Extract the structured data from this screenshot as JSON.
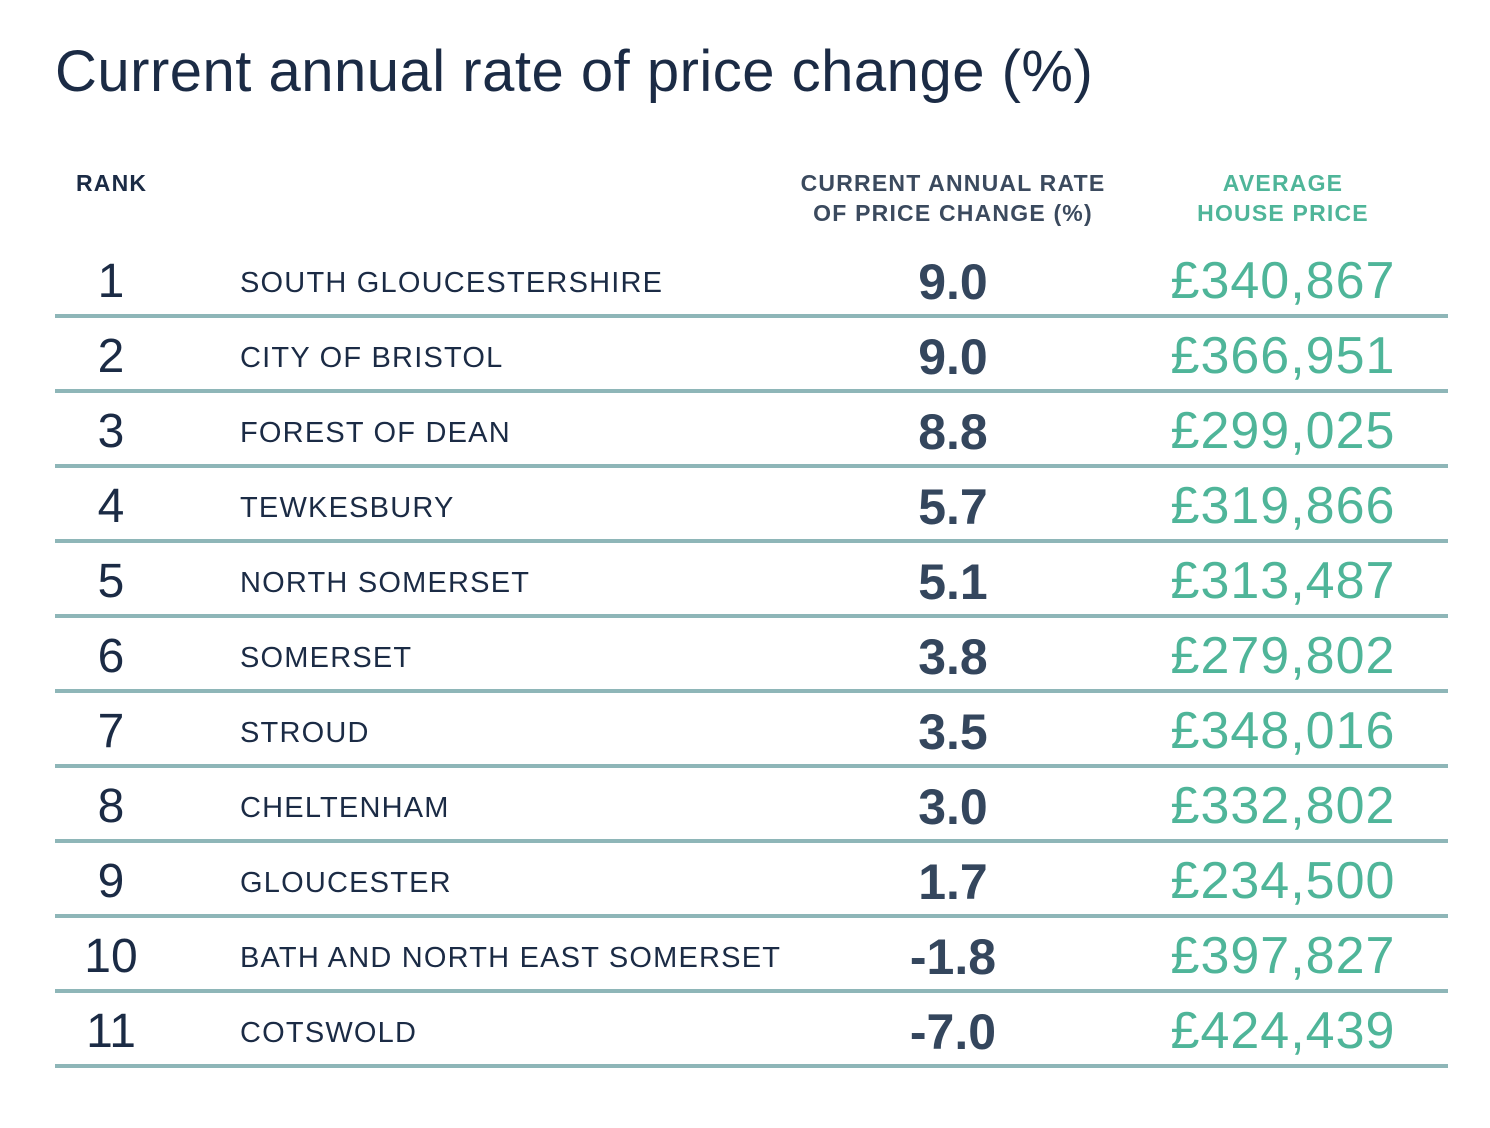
{
  "title": "Current annual rate of price change (%)",
  "headers": {
    "rank": "RANK",
    "rate_line1": "CURRENT ANNUAL RATE",
    "rate_line2": "OF PRICE CHANGE (%)",
    "price_line1": "AVERAGE",
    "price_line2": "HOUSE PRICE"
  },
  "colors": {
    "dark": "#1b2b45",
    "rate": "#34465d",
    "accent": "#4fb599",
    "rule": "#8eb6b8"
  },
  "chart_data": {
    "type": "table",
    "title": "Current annual rate of price change (%)",
    "columns": [
      "RANK",
      "",
      "CURRENT ANNUAL RATE OF PRICE CHANGE (%)",
      "AVERAGE HOUSE PRICE"
    ],
    "rows": [
      {
        "rank": "1",
        "name": "SOUTH GLOUCESTERSHIRE",
        "rate": "9.0",
        "price": "£340,867"
      },
      {
        "rank": "2",
        "name": "CITY OF BRISTOL",
        "rate": "9.0",
        "price": "£366,951"
      },
      {
        "rank": "3",
        "name": "FOREST OF DEAN",
        "rate": "8.8",
        "price": "£299,025"
      },
      {
        "rank": "4",
        "name": "TEWKESBURY",
        "rate": "5.7",
        "price": "£319,866"
      },
      {
        "rank": "5",
        "name": "NORTH SOMERSET",
        "rate": "5.1",
        "price": "£313,487"
      },
      {
        "rank": "6",
        "name": "SOMERSET",
        "rate": "3.8",
        "price": "£279,802"
      },
      {
        "rank": "7",
        "name": "STROUD",
        "rate": "3.5",
        "price": "£348,016"
      },
      {
        "rank": "8",
        "name": "CHELTENHAM",
        "rate": "3.0",
        "price": "£332,802"
      },
      {
        "rank": "9",
        "name": "GLOUCESTER",
        "rate": "1.7",
        "price": "£234,500"
      },
      {
        "rank": "10",
        "name": "BATH AND NORTH EAST SOMERSET",
        "rate": "-1.8",
        "price": "£397,827"
      },
      {
        "rank": "11",
        "name": "COTSWOLD",
        "rate": "-7.0",
        "price": "£424,439"
      }
    ]
  }
}
